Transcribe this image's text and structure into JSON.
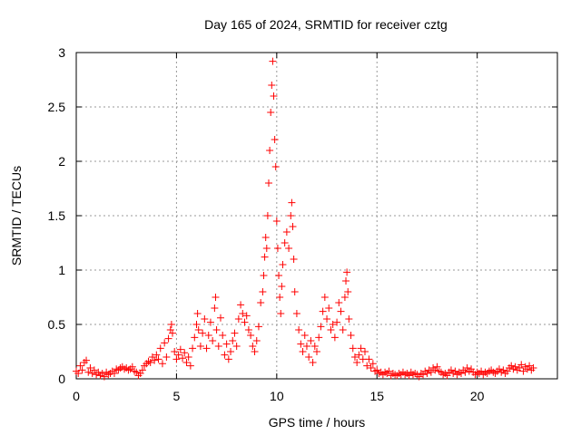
{
  "chart_data": {
    "type": "scatter",
    "title": "Day 165 of 2024, SRMTID for receiver cztg",
    "xlabel": "GPS time / hours",
    "ylabel": "SRMTID / TECUs",
    "xlim": [
      0,
      24
    ],
    "ylim": [
      0,
      3
    ],
    "xticks": [
      0,
      5,
      10,
      15,
      20
    ],
    "xtick_labels": [
      "0",
      "5",
      "10",
      "15",
      "20"
    ],
    "yticks": [
      0,
      0.5,
      1,
      1.5,
      2,
      2.5,
      3
    ],
    "ytick_labels": [
      "0",
      "0.5",
      "1",
      "1.5",
      "2",
      "2.5",
      "3"
    ],
    "grid": true,
    "marker": "plus",
    "series": [
      {
        "name": "SRMTID",
        "color": "#ff0000",
        "points": [
          [
            0.0,
            0.07
          ],
          [
            0.1,
            0.05
          ],
          [
            0.2,
            0.12
          ],
          [
            0.3,
            0.08
          ],
          [
            0.4,
            0.15
          ],
          [
            0.5,
            0.17
          ],
          [
            0.6,
            0.06
          ],
          [
            0.7,
            0.1
          ],
          [
            0.8,
            0.05
          ],
          [
            0.9,
            0.08
          ],
          [
            1.0,
            0.04
          ],
          [
            1.1,
            0.06
          ],
          [
            1.2,
            0.03
          ],
          [
            1.3,
            0.05
          ],
          [
            1.4,
            0.02
          ],
          [
            1.5,
            0.06
          ],
          [
            1.6,
            0.04
          ],
          [
            1.7,
            0.05
          ],
          [
            1.8,
            0.07
          ],
          [
            1.9,
            0.05
          ],
          [
            2.0,
            0.09
          ],
          [
            2.1,
            0.08
          ],
          [
            2.2,
            0.1
          ],
          [
            2.3,
            0.11
          ],
          [
            2.4,
            0.09
          ],
          [
            2.5,
            0.1
          ],
          [
            2.6,
            0.08
          ],
          [
            2.7,
            0.09
          ],
          [
            2.8,
            0.11
          ],
          [
            2.9,
            0.07
          ],
          [
            3.0,
            0.06
          ],
          [
            3.1,
            0.03
          ],
          [
            3.2,
            0.05
          ],
          [
            3.3,
            0.08
          ],
          [
            3.4,
            0.12
          ],
          [
            3.5,
            0.14
          ],
          [
            3.6,
            0.16
          ],
          [
            3.7,
            0.15
          ],
          [
            3.8,
            0.2
          ],
          [
            3.9,
            0.17
          ],
          [
            4.0,
            0.22
          ],
          [
            4.1,
            0.18
          ],
          [
            4.2,
            0.28
          ],
          [
            4.3,
            0.14
          ],
          [
            4.4,
            0.33
          ],
          [
            4.5,
            0.2
          ],
          [
            4.6,
            0.37
          ],
          [
            4.7,
            0.45
          ],
          [
            4.75,
            0.5
          ],
          [
            4.8,
            0.42
          ],
          [
            4.9,
            0.25
          ],
          [
            5.0,
            0.18
          ],
          [
            5.1,
            0.22
          ],
          [
            5.2,
            0.27
          ],
          [
            5.3,
            0.19
          ],
          [
            5.4,
            0.24
          ],
          [
            5.5,
            0.15
          ],
          [
            5.6,
            0.2
          ],
          [
            5.7,
            0.12
          ],
          [
            5.8,
            0.28
          ],
          [
            5.9,
            0.38
          ],
          [
            6.0,
            0.5
          ],
          [
            6.05,
            0.6
          ],
          [
            6.1,
            0.45
          ],
          [
            6.2,
            0.3
          ],
          [
            6.3,
            0.42
          ],
          [
            6.4,
            0.55
          ],
          [
            6.5,
            0.28
          ],
          [
            6.6,
            0.4
          ],
          [
            6.7,
            0.52
          ],
          [
            6.8,
            0.35
          ],
          [
            6.9,
            0.65
          ],
          [
            6.95,
            0.75
          ],
          [
            7.0,
            0.45
          ],
          [
            7.1,
            0.3
          ],
          [
            7.2,
            0.56
          ],
          [
            7.3,
            0.4
          ],
          [
            7.4,
            0.22
          ],
          [
            7.5,
            0.32
          ],
          [
            7.6,
            0.18
          ],
          [
            7.7,
            0.25
          ],
          [
            7.8,
            0.35
          ],
          [
            7.9,
            0.42
          ],
          [
            8.0,
            0.3
          ],
          [
            8.1,
            0.55
          ],
          [
            8.2,
            0.68
          ],
          [
            8.3,
            0.6
          ],
          [
            8.4,
            0.52
          ],
          [
            8.5,
            0.58
          ],
          [
            8.6,
            0.45
          ],
          [
            8.7,
            0.4
          ],
          [
            8.8,
            0.3
          ],
          [
            8.9,
            0.25
          ],
          [
            9.0,
            0.35
          ],
          [
            9.1,
            0.48
          ],
          [
            9.2,
            0.7
          ],
          [
            9.3,
            0.8
          ],
          [
            9.35,
            0.95
          ],
          [
            9.4,
            1.12
          ],
          [
            9.45,
            1.3
          ],
          [
            9.5,
            1.2
          ],
          [
            9.55,
            1.5
          ],
          [
            9.6,
            1.8
          ],
          [
            9.65,
            2.1
          ],
          [
            9.7,
            2.45
          ],
          [
            9.75,
            2.7
          ],
          [
            9.8,
            2.92
          ],
          [
            9.85,
            2.6
          ],
          [
            9.9,
            2.2
          ],
          [
            9.95,
            1.95
          ],
          [
            10.0,
            1.45
          ],
          [
            10.05,
            1.2
          ],
          [
            10.1,
            0.95
          ],
          [
            10.15,
            0.75
          ],
          [
            10.2,
            0.6
          ],
          [
            10.25,
            0.85
          ],
          [
            10.3,
            1.05
          ],
          [
            10.4,
            1.25
          ],
          [
            10.5,
            1.35
          ],
          [
            10.6,
            1.2
          ],
          [
            10.7,
            1.5
          ],
          [
            10.75,
            1.62
          ],
          [
            10.8,
            1.4
          ],
          [
            10.85,
            1.1
          ],
          [
            10.9,
            0.8
          ],
          [
            11.0,
            0.6
          ],
          [
            11.1,
            0.45
          ],
          [
            11.2,
            0.32
          ],
          [
            11.3,
            0.25
          ],
          [
            11.4,
            0.4
          ],
          [
            11.5,
            0.3
          ],
          [
            11.6,
            0.2
          ],
          [
            11.7,
            0.35
          ],
          [
            11.8,
            0.15
          ],
          [
            11.9,
            0.3
          ],
          [
            12.0,
            0.25
          ],
          [
            12.1,
            0.38
          ],
          [
            12.2,
            0.48
          ],
          [
            12.3,
            0.62
          ],
          [
            12.4,
            0.75
          ],
          [
            12.5,
            0.55
          ],
          [
            12.6,
            0.65
          ],
          [
            12.7,
            0.45
          ],
          [
            12.8,
            0.5
          ],
          [
            12.9,
            0.38
          ],
          [
            13.0,
            0.52
          ],
          [
            13.1,
            0.7
          ],
          [
            13.2,
            0.62
          ],
          [
            13.3,
            0.45
          ],
          [
            13.4,
            0.75
          ],
          [
            13.45,
            0.9
          ],
          [
            13.5,
            0.98
          ],
          [
            13.55,
            0.8
          ],
          [
            13.6,
            0.55
          ],
          [
            13.7,
            0.4
          ],
          [
            13.8,
            0.28
          ],
          [
            13.9,
            0.2
          ],
          [
            14.0,
            0.15
          ],
          [
            14.1,
            0.22
          ],
          [
            14.2,
            0.28
          ],
          [
            14.3,
            0.18
          ],
          [
            14.4,
            0.25
          ],
          [
            14.5,
            0.12
          ],
          [
            14.6,
            0.18
          ],
          [
            14.7,
            0.1
          ],
          [
            14.8,
            0.14
          ],
          [
            14.9,
            0.07
          ],
          [
            15.0,
            0.08
          ],
          [
            15.1,
            0.05
          ],
          [
            15.2,
            0.06
          ],
          [
            15.3,
            0.04
          ],
          [
            15.4,
            0.06
          ],
          [
            15.5,
            0.05
          ],
          [
            15.6,
            0.07
          ],
          [
            15.7,
            0.03
          ],
          [
            15.8,
            0.05
          ],
          [
            15.9,
            0.04
          ],
          [
            16.0,
            0.03
          ],
          [
            16.1,
            0.05
          ],
          [
            16.2,
            0.04
          ],
          [
            16.3,
            0.06
          ],
          [
            16.4,
            0.04
          ],
          [
            16.5,
            0.05
          ],
          [
            16.6,
            0.03
          ],
          [
            16.7,
            0.06
          ],
          [
            16.8,
            0.04
          ],
          [
            16.9,
            0.05
          ],
          [
            17.0,
            0.04
          ],
          [
            17.1,
            0.02
          ],
          [
            17.2,
            0.05
          ],
          [
            17.3,
            0.04
          ],
          [
            17.4,
            0.07
          ],
          [
            17.5,
            0.05
          ],
          [
            17.6,
            0.08
          ],
          [
            17.7,
            0.06
          ],
          [
            17.8,
            0.1
          ],
          [
            17.9,
            0.08
          ],
          [
            18.0,
            0.11
          ],
          [
            18.1,
            0.07
          ],
          [
            18.2,
            0.06
          ],
          [
            18.3,
            0.04
          ],
          [
            18.4,
            0.05
          ],
          [
            18.5,
            0.03
          ],
          [
            18.6,
            0.06
          ],
          [
            18.7,
            0.08
          ],
          [
            18.8,
            0.05
          ],
          [
            18.9,
            0.07
          ],
          [
            19.0,
            0.04
          ],
          [
            19.1,
            0.06
          ],
          [
            19.2,
            0.05
          ],
          [
            19.3,
            0.08
          ],
          [
            19.4,
            0.06
          ],
          [
            19.5,
            0.1
          ],
          [
            19.6,
            0.07
          ],
          [
            19.7,
            0.09
          ],
          [
            19.8,
            0.06
          ],
          [
            19.9,
            0.04
          ],
          [
            20.0,
            0.06
          ],
          [
            20.1,
            0.05
          ],
          [
            20.2,
            0.07
          ],
          [
            20.3,
            0.04
          ],
          [
            20.4,
            0.06
          ],
          [
            20.5,
            0.05
          ],
          [
            20.6,
            0.07
          ],
          [
            20.7,
            0.08
          ],
          [
            20.8,
            0.06
          ],
          [
            20.9,
            0.05
          ],
          [
            21.0,
            0.07
          ],
          [
            21.1,
            0.09
          ],
          [
            21.2,
            0.06
          ],
          [
            21.3,
            0.08
          ],
          [
            21.4,
            0.05
          ],
          [
            21.5,
            0.07
          ],
          [
            21.6,
            0.1
          ],
          [
            21.7,
            0.12
          ],
          [
            21.8,
            0.09
          ],
          [
            21.9,
            0.11
          ],
          [
            22.0,
            0.08
          ],
          [
            22.1,
            0.1
          ],
          [
            22.2,
            0.13
          ],
          [
            22.3,
            0.07
          ],
          [
            22.4,
            0.11
          ],
          [
            22.5,
            0.09
          ],
          [
            22.6,
            0.12
          ],
          [
            22.7,
            0.08
          ],
          [
            22.8,
            0.1
          ]
        ]
      }
    ]
  }
}
